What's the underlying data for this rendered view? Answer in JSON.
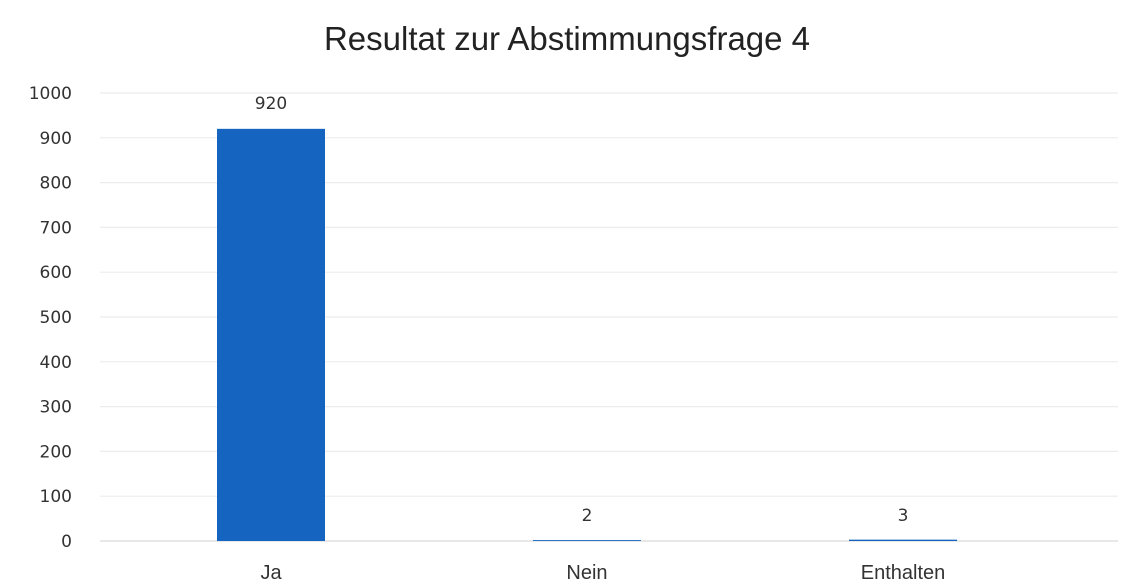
{
  "chart_data": {
    "type": "bar",
    "title": "Resultat zur Abstimmungsfrage  4",
    "categories": [
      "Ja",
      "Nein",
      "Enthalten"
    ],
    "values": [
      920,
      2,
      3
    ],
    "data_labels": [
      "920",
      "2",
      "3"
    ],
    "ylim": [
      0,
      1000
    ],
    "yticks": [
      0,
      100,
      200,
      300,
      400,
      500,
      600,
      700,
      800,
      900,
      1000
    ],
    "grid": true,
    "legend": "none",
    "bar_color": "#1565c0"
  }
}
